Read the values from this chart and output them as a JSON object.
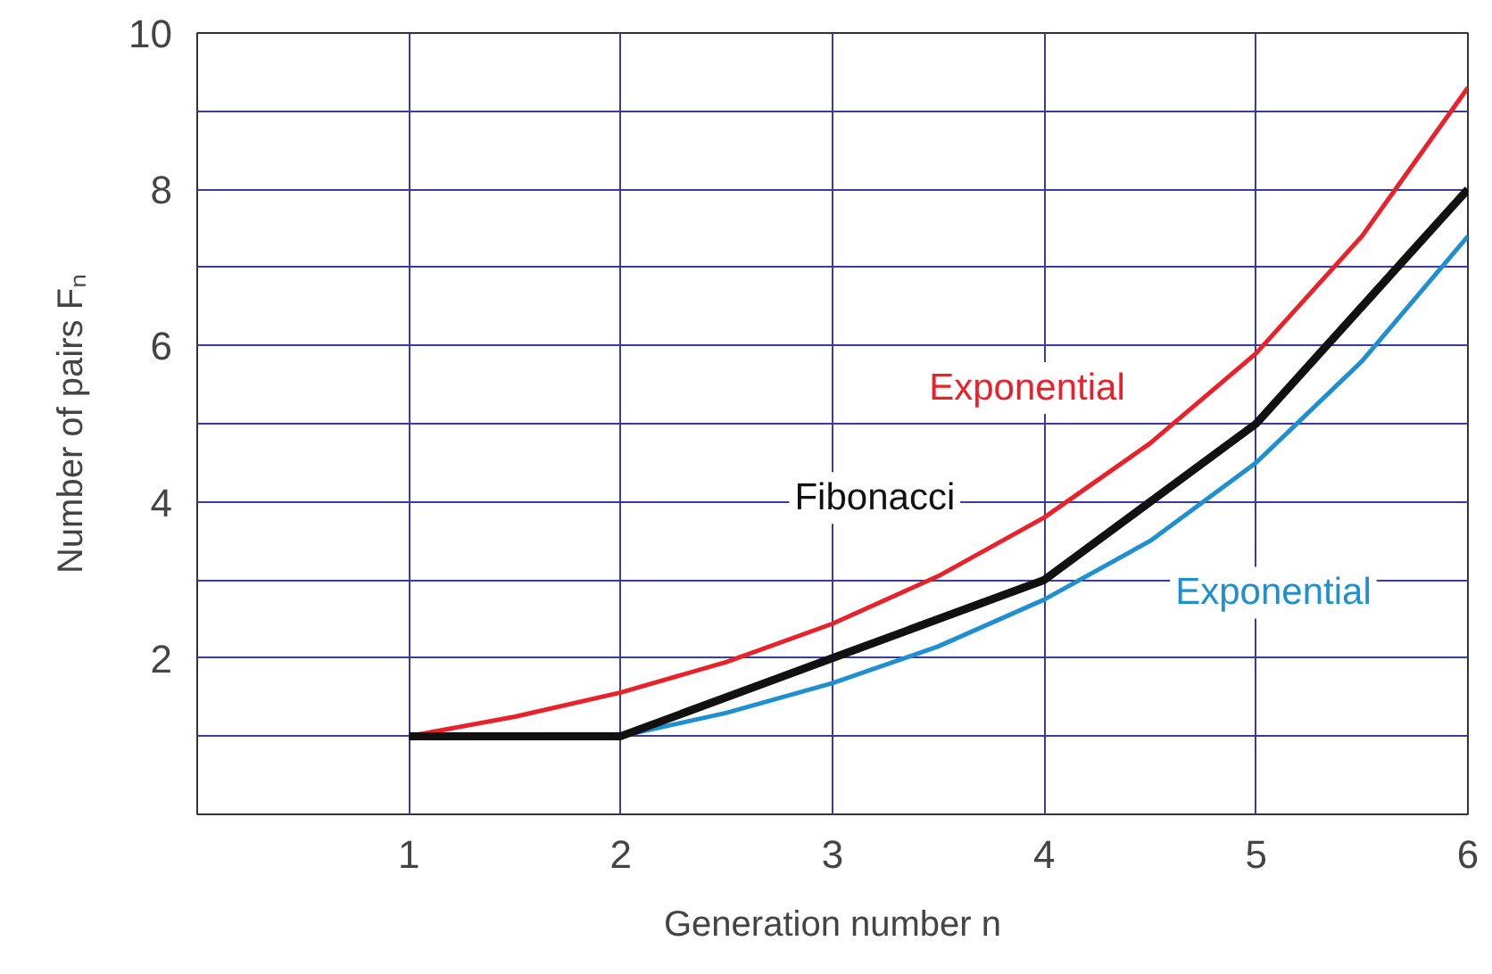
{
  "chart_data": {
    "type": "line",
    "xlabel": "Generation number n",
    "ylabel": "Number of pairs Fₙ",
    "xlim": [
      0,
      6
    ],
    "ylim": [
      0,
      10
    ],
    "xticks": [
      1,
      2,
      3,
      4,
      5,
      6
    ],
    "yticks": [
      {
        "value": 1,
        "label": null
      },
      2,
      {
        "value": 3,
        "label": null
      },
      4,
      {
        "value": 5,
        "label": null
      },
      6,
      {
        "value": 7,
        "label": null
      },
      8,
      {
        "value": 9,
        "label": null
      },
      10
    ],
    "grid": true,
    "marker": "none",
    "line_style": "solid",
    "series": [
      {
        "name": "Exponential",
        "color": "#e8222a",
        "x": [
          1,
          1.5,
          2,
          2.5,
          3,
          3.5,
          4,
          4.5,
          5,
          5.5,
          6
        ],
        "values": [
          1,
          1.25,
          1.56,
          1.95,
          2.44,
          3.05,
          3.8,
          4.75,
          5.9,
          7.4,
          9.3
        ]
      },
      {
        "name": "Exponential",
        "color": "#1f8fcf",
        "x": [
          2,
          2.5,
          3,
          3.5,
          4,
          4.5,
          5,
          5.5,
          6
        ],
        "values": [
          1,
          1.3,
          1.68,
          2.15,
          2.75,
          3.5,
          4.5,
          5.8,
          7.4
        ]
      },
      {
        "name": "Fibonacci",
        "color": "#111111",
        "x": [
          1,
          2,
          3,
          4,
          5,
          6
        ],
        "values": [
          1,
          1,
          2,
          3,
          5,
          8
        ]
      }
    ]
  }
}
